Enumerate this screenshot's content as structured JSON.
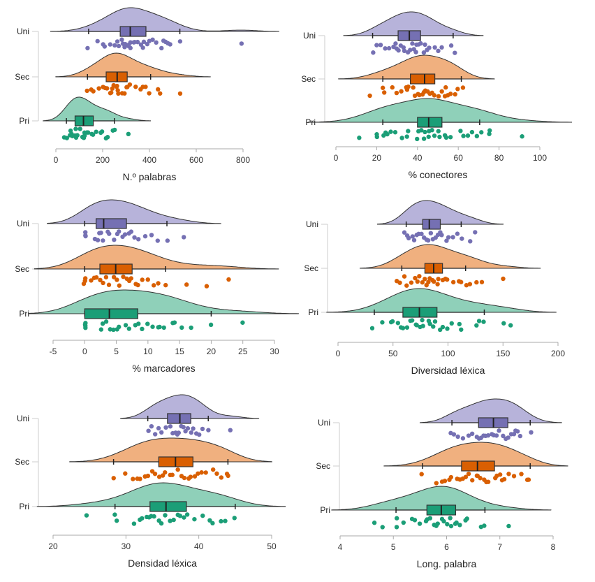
{
  "colors": {
    "Uni": {
      "point": "#7570b3",
      "density": "#b7b3da"
    },
    "Sec": {
      "point": "#d95f02",
      "density": "#f0b07f"
    },
    "Pri": {
      "point": "#1b9e77",
      "density": "#8fd0b9"
    },
    "outline": "#333333"
  },
  "chart_data": [
    {
      "type": "raincloud",
      "xlabel": "N.º palabras",
      "xlim": [
        0,
        800
      ],
      "ticks": [
        "0",
        "200",
        "400",
        "600",
        "800"
      ],
      "tick_values": [
        0,
        200,
        400,
        600,
        800
      ],
      "groups": [
        {
          "name": "Uni",
          "box": {
            "whisker_low": 140,
            "q1": 275,
            "median": 318,
            "q3": 385,
            "whisker_high": 530
          },
          "points": [
            140,
            180,
            200,
            210,
            230,
            250,
            260,
            270,
            280,
            285,
            290,
            300,
            305,
            310,
            315,
            320,
            330,
            340,
            350,
            360,
            370,
            380,
            390,
            400,
            410,
            430,
            450,
            460,
            470,
            480,
            490,
            530,
            790
          ]
        },
        {
          "name": "Sec",
          "box": {
            "whisker_low": 135,
            "q1": 215,
            "median": 262,
            "q3": 305,
            "whisker_high": 405
          },
          "points": [
            130,
            150,
            160,
            180,
            200,
            210,
            220,
            230,
            240,
            245,
            250,
            255,
            260,
            265,
            270,
            280,
            290,
            300,
            310,
            320,
            340,
            360,
            370,
            380,
            400,
            440,
            450,
            530
          ]
        },
        {
          "name": "Pri",
          "box": {
            "whisker_low": 45,
            "q1": 82,
            "median": 118,
            "q3": 160,
            "whisker_high": 250
          },
          "points": [
            40,
            50,
            60,
            65,
            70,
            75,
            80,
            85,
            90,
            95,
            100,
            110,
            115,
            120,
            125,
            130,
            140,
            150,
            160,
            170,
            190,
            200,
            210,
            220,
            240,
            250,
            310
          ]
        }
      ]
    },
    {
      "type": "raincloud",
      "xlabel": "% conectores",
      "xlim": [
        0,
        100
      ],
      "ticks": [
        "0",
        "20",
        "40",
        "60",
        "80",
        "100"
      ],
      "tick_values": [
        0,
        20,
        40,
        60,
        80,
        100
      ],
      "groups": [
        {
          "name": "Uni",
          "box": {
            "whisker_low": 18,
            "q1": 30.5,
            "median": 36,
            "q3": 41.5,
            "whisker_high": 57.5
          },
          "points": [
            18,
            20,
            22,
            24,
            26,
            28,
            29,
            30,
            31,
            32,
            33,
            34,
            35,
            36,
            37,
            38,
            39,
            40,
            41,
            42,
            43,
            44,
            45,
            46,
            48,
            50,
            52,
            57,
            58
          ]
        },
        {
          "name": "Sec",
          "box": {
            "whisker_low": 23,
            "q1": 36.5,
            "median": 43.5,
            "q3": 48.5,
            "whisker_high": 61.5
          },
          "points": [
            17,
            23,
            24,
            28,
            30,
            32,
            34,
            35,
            36,
            38,
            39,
            40,
            41,
            42,
            43,
            44,
            45,
            46,
            47,
            48,
            50,
            52,
            53,
            54,
            55,
            56,
            58,
            60,
            62
          ]
        },
        {
          "name": "Pri",
          "box": {
            "whisker_low": 23,
            "q1": 40,
            "median": 45.5,
            "q3": 52,
            "whisker_high": 70.5
          },
          "points": [
            11,
            20,
            20,
            23,
            24,
            25,
            27,
            29,
            32,
            35,
            35,
            40,
            41,
            42,
            43,
            44,
            45,
            46,
            47,
            48,
            50,
            51,
            53,
            54,
            56,
            61,
            63,
            65,
            67,
            69,
            71,
            75,
            75,
            91
          ]
        }
      ]
    },
    {
      "type": "raincloud",
      "xlabel": "% marcadores",
      "xlim": [
        -5,
        30
      ],
      "ticks": [
        "-5",
        "0",
        "5",
        "10",
        "15",
        "20",
        "25",
        "30"
      ],
      "tick_values": [
        -5,
        0,
        5,
        10,
        15,
        20,
        25,
        30
      ],
      "groups": [
        {
          "name": "Uni",
          "box": {
            "whisker_low": 0,
            "q1": 1.8,
            "median": 3,
            "q3": 6.6,
            "whisker_high": 13
          },
          "points": [
            0,
            0,
            0,
            1.5,
            2,
            2.2,
            2.5,
            3,
            3.5,
            4,
            4.5,
            5,
            5.5,
            6,
            6.5,
            7,
            7.5,
            8,
            8.5,
            9.5,
            10.5,
            11.5,
            13,
            15.6
          ]
        },
        {
          "name": "Sec",
          "box": {
            "whisker_low": 0,
            "q1": 2.4,
            "median": 4.9,
            "q3": 7.5,
            "whisker_high": 12.8
          },
          "points": [
            0,
            0,
            0,
            1,
            1.5,
            2,
            2.5,
            3,
            3.5,
            4,
            4.5,
            5,
            5.5,
            6,
            6.5,
            7,
            7.5,
            8,
            8.5,
            9,
            10,
            11,
            11.5,
            12.8,
            16,
            19.2,
            22.7
          ]
        },
        {
          "name": "Pri",
          "box": {
            "whisker_low": 0,
            "q1": 0,
            "median": 3.9,
            "q3": 8.4,
            "whisker_high": 20
          },
          "points": [
            0,
            0,
            0,
            0,
            2.5,
            3,
            3.5,
            4,
            4.5,
            5,
            5.5,
            6.5,
            7,
            8,
            8.5,
            9,
            10,
            10.7,
            11.7,
            11.7,
            12.5,
            13.9,
            14.3,
            15.4,
            16.7,
            20,
            25
          ]
        }
      ]
    },
    {
      "type": "raincloud",
      "xlabel": "Diversidad léxica",
      "xlim": [
        0,
        200
      ],
      "ticks": [
        "0",
        "50",
        "100",
        "150",
        "200"
      ],
      "tick_values": [
        0,
        50,
        100,
        150,
        200
      ],
      "groups": [
        {
          "name": "Uni",
          "box": {
            "whisker_low": 62,
            "q1": 77,
            "median": 83,
            "q3": 93,
            "whisker_high": 112
          },
          "points": [
            61,
            63,
            65,
            68,
            70,
            72,
            74,
            76,
            78,
            80,
            82,
            84,
            86,
            88,
            90,
            92,
            95,
            98,
            100,
            105,
            108,
            112,
            120,
            125
          ]
        },
        {
          "name": "Sec",
          "box": {
            "whisker_low": 58,
            "q1": 79,
            "median": 87,
            "q3": 95,
            "whisker_high": 116
          },
          "points": [
            53,
            56,
            60,
            62,
            66,
            70,
            72,
            74,
            76,
            78,
            80,
            82,
            84,
            86,
            88,
            90,
            92,
            95,
            98,
            100,
            105,
            110,
            112,
            116,
            120,
            125,
            131,
            151
          ]
        },
        {
          "name": "Pri",
          "box": {
            "whisker_low": 33,
            "q1": 59,
            "median": 74,
            "q3": 90,
            "whisker_high": 133
          },
          "points": [
            32,
            41,
            48,
            50,
            54,
            57,
            60,
            62,
            65,
            68,
            70,
            72,
            74,
            76,
            78,
            82,
            84,
            86,
            88,
            92,
            95,
            100,
            104,
            110,
            112,
            126,
            128,
            133,
            150,
            156
          ]
        }
      ]
    },
    {
      "type": "raincloud",
      "xlabel": "Densidad léxica",
      "xlim": [
        20,
        50
      ],
      "ticks": [
        "20",
        "30",
        "40",
        "50"
      ],
      "tick_values": [
        20,
        30,
        40,
        50
      ],
      "groups": [
        {
          "name": "Uni",
          "box": {
            "whisker_low": 33,
            "q1": 35.7,
            "median": 37.4,
            "q3": 38.9,
            "whisker_high": 41.3
          },
          "points": [
            33.2,
            33.5,
            34,
            34.5,
            35,
            35.5,
            36,
            36.3,
            36.7,
            37,
            37.3,
            37.6,
            38,
            38.3,
            38.6,
            39,
            39.3,
            39.6,
            40,
            40.6,
            41.3,
            44.3
          ]
        },
        {
          "name": "Sec",
          "box": {
            "whisker_low": 28.3,
            "q1": 34.5,
            "median": 36.8,
            "q3": 39.2,
            "whisker_high": 44
          },
          "points": [
            28.3,
            29.8,
            31,
            31.5,
            32,
            32.5,
            33,
            33.5,
            34,
            34.5,
            35,
            35.5,
            36,
            36.5,
            37,
            37.5,
            38,
            38.5,
            39,
            39.5,
            40,
            40.5,
            41,
            42,
            42.5,
            43,
            44,
            44
          ]
        },
        {
          "name": "Pri",
          "box": {
            "whisker_low": 28.5,
            "q1": 33.3,
            "median": 35.5,
            "q3": 38.3,
            "whisker_high": 45
          },
          "points": [
            24.7,
            28.5,
            28.8,
            31.2,
            31.8,
            32.3,
            32.8,
            33.2,
            33.5,
            34,
            34.5,
            35,
            35.5,
            36,
            36.5,
            37,
            37.5,
            38,
            38.5,
            39.5,
            40.4,
            41.5,
            42,
            43,
            43.5,
            45
          ]
        }
      ]
    },
    {
      "type": "raincloud",
      "xlabel": "Long. palabra",
      "xlim": [
        4,
        8
      ],
      "ticks": [
        "4",
        "5",
        "6",
        "7",
        "8"
      ],
      "tick_values": [
        4,
        5,
        6,
        7,
        8
      ],
      "groups": [
        {
          "name": "Uni",
          "box": {
            "whisker_low": 6.1,
            "q1": 6.6,
            "median": 6.88,
            "q3": 7.15,
            "whisker_high": 7.57
          },
          "points": [
            6.08,
            6.15,
            6.2,
            6.3,
            6.4,
            6.5,
            6.55,
            6.6,
            6.65,
            6.7,
            6.75,
            6.8,
            6.85,
            6.9,
            6.95,
            7.0,
            7.05,
            7.1,
            7.15,
            7.2,
            7.25,
            7.3,
            7.35,
            7.4,
            7.58
          ]
        },
        {
          "name": "Sec",
          "box": {
            "whisker_low": 5.55,
            "q1": 6.28,
            "median": 6.58,
            "q3": 6.9,
            "whisker_high": 7.57
          },
          "points": [
            5.55,
            5.8,
            5.9,
            5.95,
            6.05,
            6.1,
            6.2,
            6.25,
            6.3,
            6.35,
            6.4,
            6.5,
            6.55,
            6.6,
            6.65,
            6.7,
            6.75,
            6.8,
            6.9,
            6.95,
            7.0,
            7.05,
            7.1,
            7.15,
            7.25,
            7.4,
            7.5,
            7.55
          ]
        },
        {
          "name": "Pri",
          "box": {
            "whisker_low": 5.05,
            "q1": 5.63,
            "median": 5.9,
            "q3": 6.17,
            "whisker_high": 6.72
          },
          "points": [
            4.65,
            4.8,
            5.05,
            5.05,
            5.2,
            5.35,
            5.4,
            5.5,
            5.6,
            5.65,
            5.7,
            5.75,
            5.8,
            5.85,
            5.9,
            5.95,
            6.0,
            6.05,
            6.1,
            6.15,
            6.2,
            6.25,
            6.35,
            6.4,
            6.65,
            6.7,
            7.15
          ]
        }
      ]
    }
  ]
}
